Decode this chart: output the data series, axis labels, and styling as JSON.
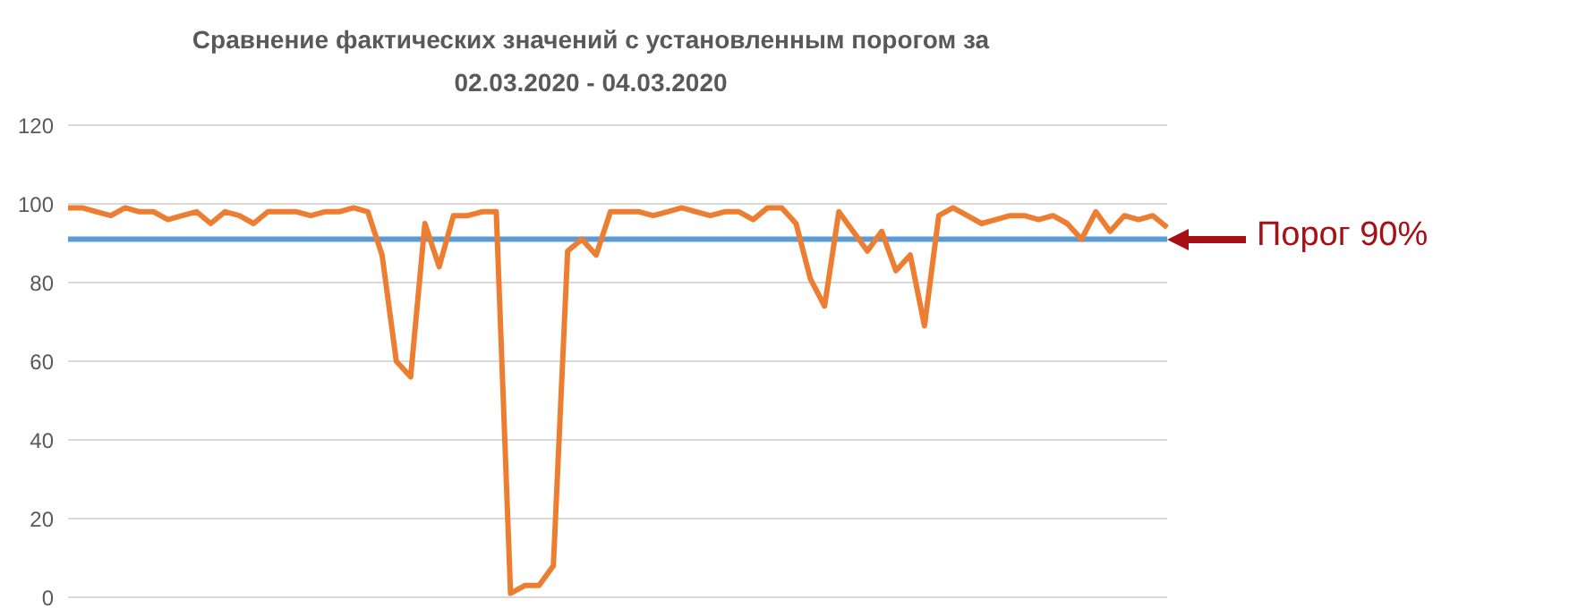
{
  "chart_data": {
    "type": "line",
    "title": "Сравнение фактических значений с установленным порогом  за 02.03.2020 - 04.03.2020",
    "categories": [
      null,
      null,
      null,
      null,
      null,
      null,
      null,
      null,
      null,
      null,
      null,
      null,
      null,
      null,
      null,
      null,
      null,
      null,
      null,
      null,
      null,
      null,
      null,
      null,
      null,
      null,
      null,
      null,
      null,
      null,
      null,
      null,
      null,
      null,
      null,
      null,
      null,
      null,
      null,
      null,
      null,
      null,
      null,
      null,
      null,
      null,
      null,
      null,
      null,
      null,
      null,
      null,
      null,
      null,
      null,
      null,
      null,
      null,
      null,
      null,
      null,
      null,
      null,
      null,
      null,
      null,
      null,
      null,
      null,
      null,
      null,
      null,
      null,
      null,
      null,
      null,
      null,
      null
    ],
    "series": [
      {
        "color": "#ed7d31",
        "values": [
          99,
          99,
          98,
          97,
          99,
          98,
          98,
          96,
          97,
          98,
          95,
          98,
          97,
          95,
          98,
          98,
          98,
          97,
          98,
          98,
          99,
          98,
          87,
          60,
          56,
          95,
          84,
          97,
          97,
          98,
          98,
          1,
          3,
          3,
          8,
          88,
          91,
          87,
          98,
          98,
          98,
          97,
          98,
          99,
          98,
          97,
          98,
          98,
          96,
          99,
          99,
          95,
          81,
          74,
          98,
          93,
          88,
          93,
          83,
          87,
          69,
          97,
          99,
          97,
          95,
          96,
          97,
          97,
          96,
          97,
          95,
          91,
          98,
          93,
          97,
          96,
          97,
          94
        ]
      }
    ],
    "ylim": [
      0,
      120
    ],
    "yticks": [
      0,
      20,
      40,
      60,
      80,
      100,
      120
    ],
    "grid": "y",
    "tick_labels": "y",
    "marker": "none",
    "line_style": "solid",
    "ref_lines": [
      {
        "axis": "y",
        "value": 91,
        "label": "Порог 90%",
        "color": "#5b9bd5"
      }
    ]
  }
}
